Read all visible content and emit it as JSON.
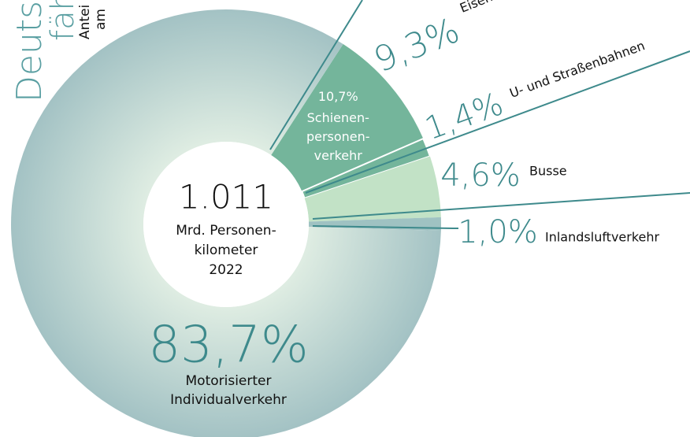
{
  "chart_data": {
    "type": "donut",
    "title_fragments": [
      "Deutsc",
      "fähr",
      "Antei",
      "am"
    ],
    "total_label": "1.011",
    "center_lines": [
      "Mrd. Personen-",
      "kilometer",
      "2022"
    ],
    "categories": [
      "Eisenbahn",
      "U- und Straßenbahnen",
      "Busse",
      "Inlandsluftverkehr",
      "Motorisierter Individualverkehr"
    ],
    "values": [
      9.3,
      1.4,
      4.6,
      1.0,
      83.7
    ],
    "value_labels": [
      "9,3%",
      "1,4%",
      "4,6%",
      "1,0%",
      "83,7%"
    ],
    "colors": [
      "#74b59b",
      "#74b59b",
      "#c2e2c6",
      "#9fc2c2",
      "#a9c7c7"
    ],
    "group": {
      "value": 10.7,
      "label": "10,7%",
      "lines": [
        "Schienen-",
        "personen-",
        "verkehr"
      ]
    }
  }
}
